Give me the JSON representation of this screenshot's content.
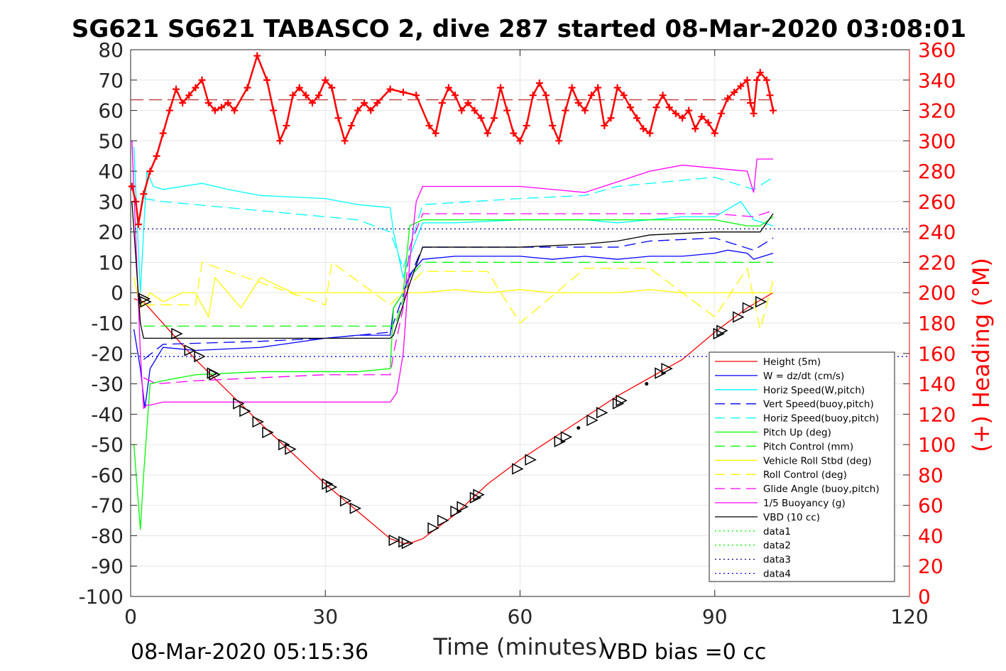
{
  "chart_data": {
    "type": "line",
    "title": "SG621 SG621 TABASCO 2, dive 287 started 08-Mar-2020 03:08:01",
    "xlabel": "Time (minutes)",
    "ylabel": "",
    "y2label": "(+) Heading (°M)",
    "xlim": [
      0,
      120
    ],
    "ylim": [
      -100,
      80
    ],
    "y2lim": [
      0,
      360
    ],
    "xticks": [
      0,
      30,
      60,
      90,
      120
    ],
    "yticks": [
      -100,
      -90,
      -80,
      -70,
      -60,
      -50,
      -40,
      -30,
      -20,
      -10,
      0,
      10,
      20,
      30,
      40,
      50,
      60,
      70,
      80
    ],
    "y2ticks": [
      0,
      20,
      40,
      60,
      80,
      100,
      120,
      140,
      160,
      180,
      200,
      220,
      240,
      260,
      280,
      300,
      320,
      340,
      360
    ],
    "grid": true,
    "legend_position": "bottom-right inside",
    "footer_left": "08-Mar-2020 05:15:36",
    "footer_right": "VBD bias =0 cc",
    "colors": {
      "red": "#ff0000",
      "blue": "#0000ff",
      "cyan": "#00ffff",
      "green": "#00ff00",
      "yellow": "#ffff00",
      "magenta": "#ff00ff",
      "black": "#000000",
      "navy": "#000080"
    },
    "series": [
      {
        "name": "Height (5m)",
        "color": "#ff0000",
        "dash": "solid",
        "x": [
          0.5,
          2,
          10,
          20,
          30,
          35,
          40,
          42,
          43,
          45,
          50,
          55,
          60,
          65,
          70,
          75,
          80,
          85,
          90,
          95,
          99
        ],
        "y": [
          -2,
          -3,
          -22,
          -43,
          -63,
          -72,
          -81,
          -82.5,
          -82.5,
          -81,
          -73,
          -63,
          -55,
          -48,
          -41,
          -34,
          -28,
          -22,
          -13,
          -5,
          0
        ]
      },
      {
        "name": "W = dz/dt (cm/s)",
        "color": "#0000ff",
        "dash": "solid",
        "x": [
          0.5,
          1.5,
          2.2,
          3,
          5,
          10,
          20,
          30,
          35,
          40,
          40.5,
          42,
          43,
          45,
          50,
          60,
          65,
          70,
          75,
          80,
          85,
          90,
          92,
          95,
          96,
          99
        ],
        "y": [
          -12,
          -25,
          -38,
          -25,
          -18,
          -19,
          -18,
          -15,
          -14,
          -14,
          -5,
          0,
          6,
          11,
          12,
          12,
          11,
          12,
          11,
          12,
          12,
          13,
          14,
          13,
          11,
          13
        ]
      },
      {
        "name": "Horiz Speed(W,pitch)",
        "color": "#00ffff",
        "dash": "solid",
        "x": [
          0.5,
          1.5,
          2.5,
          3.5,
          5,
          8,
          11,
          15,
          20,
          30,
          35,
          40,
          40.5,
          42,
          43,
          45,
          50,
          60,
          70,
          75,
          80,
          85,
          90,
          94,
          96,
          99
        ],
        "y": [
          48,
          0,
          40,
          35,
          34,
          35,
          36,
          34,
          32,
          31,
          29,
          28,
          20,
          5,
          12,
          23,
          23,
          24,
          24,
          23,
          24,
          25,
          25,
          30,
          24,
          22
        ]
      },
      {
        "name": "Vert Speed(buoy,pitch)",
        "color": "#0000ff",
        "dash": "dashed",
        "x": [
          2,
          5,
          20,
          30,
          40,
          41,
          43,
          45,
          60,
          75,
          80,
          90,
          96,
          99
        ],
        "y": [
          -22,
          -17,
          -16,
          -15,
          -13,
          -7,
          5,
          15,
          15,
          15,
          17,
          18,
          14,
          18
        ]
      },
      {
        "name": "Horiz Speed(buoy,pitch)",
        "color": "#00ffff",
        "dash": "dashed",
        "x": [
          2,
          5,
          15,
          25,
          35,
          40,
          42,
          43,
          45,
          60,
          70,
          75,
          80,
          90,
          96,
          99
        ],
        "y": [
          31,
          30,
          28,
          26,
          24,
          20,
          8,
          15,
          29,
          31,
          32,
          35,
          36,
          38,
          34,
          38
        ]
      },
      {
        "name": "Pitch Up (deg)",
        "color": "#00ff00",
        "dash": "solid",
        "x": [
          0.5,
          1.5,
          2,
          3,
          5,
          10,
          20,
          30,
          35,
          40,
          40.5,
          42,
          43,
          45,
          60,
          70,
          80,
          90,
          95,
          97,
          99
        ],
        "y": [
          -50,
          -78,
          -60,
          -30,
          -29,
          -27,
          -26,
          -26,
          -26,
          -25,
          -5,
          0,
          22,
          24,
          24,
          24,
          24,
          24,
          22,
          22,
          25
        ]
      },
      {
        "name": "Pitch Control (mm)",
        "color": "#00ff00",
        "dash": "dashed",
        "x": [
          2,
          40.5,
          41,
          43,
          45,
          99
        ],
        "y": [
          -11,
          -11,
          -9,
          5,
          10,
          10
        ]
      },
      {
        "name": "Vehicle Roll Stbd (deg)",
        "color": "#ffff00",
        "dash": "solid",
        "x": [
          0.5,
          1.5,
          3,
          5,
          8,
          10,
          12,
          13,
          15,
          17,
          20,
          25,
          30,
          35,
          40,
          45,
          50,
          55,
          60,
          65,
          70,
          75,
          80,
          85,
          90,
          95,
          97,
          99
        ],
        "y": [
          5,
          -5,
          0,
          -3,
          0,
          0,
          -8,
          5,
          0,
          -5,
          5,
          0,
          0,
          0,
          0,
          0,
          1,
          0,
          1,
          0,
          0,
          0,
          1,
          0,
          0,
          0,
          0,
          0
        ]
      },
      {
        "name": "Roll Control (deg)",
        "color": "#ffff00",
        "dash": "dashed",
        "x": [
          2,
          10,
          11,
          30,
          31,
          40,
          45,
          55,
          60,
          70,
          80,
          90,
          95,
          97,
          99
        ],
        "y": [
          -4,
          -4,
          10,
          -4,
          10,
          -4,
          7,
          7,
          -10,
          8,
          8,
          -8,
          8,
          -12,
          4
        ]
      },
      {
        "name": "Glide Angle (buoy,pitch)",
        "color": "#ff00ff",
        "dash": "dashed",
        "x": [
          2,
          4,
          10,
          20,
          30,
          40,
          40.5,
          42,
          43,
          45,
          60,
          80,
          90,
          96,
          99
        ],
        "y": [
          -28,
          -30,
          -29,
          -28,
          -27,
          -27,
          -20,
          -5,
          15,
          26,
          26,
          26,
          26,
          25,
          27
        ]
      },
      {
        "name": "1/5 Buoyancy (g)",
        "color": "#ff00ff",
        "dash": "solid",
        "x": [
          0.2,
          1.5,
          2,
          2.5,
          3,
          5,
          40,
          41,
          42,
          43,
          44,
          45,
          60,
          70,
          80,
          85,
          90,
          95,
          96,
          96.5,
          99
        ],
        "y": [
          50,
          -20,
          -38,
          -37,
          -37,
          -36,
          -36,
          -33,
          -20,
          10,
          30,
          35,
          35,
          33,
          40,
          42,
          41,
          40,
          33,
          44,
          44
        ]
      },
      {
        "name": "VBD (10 cc)",
        "color": "#000000",
        "dash": "solid",
        "x": [
          0.2,
          1.5,
          2,
          40,
          40.5,
          43,
          45,
          60,
          70,
          75,
          80,
          90,
          97,
          99
        ],
        "y": [
          30,
          -10,
          -15,
          -15,
          -14,
          3,
          15,
          15,
          16,
          17,
          19,
          20,
          20,
          26
        ]
      },
      {
        "name": "data1",
        "color": "#00ff00",
        "dash": "dotted",
        "x": [],
        "y": []
      },
      {
        "name": "data2",
        "color": "#00ff00",
        "dash": "dotted",
        "x": [],
        "y": []
      },
      {
        "name": "data3",
        "color": "#000080",
        "dash": "dotted",
        "x": [
          0,
          120
        ],
        "y": [
          21,
          21
        ]
      },
      {
        "name": "data4",
        "color": "#0000ff",
        "dash": "dotted",
        "x": [
          0,
          120
        ],
        "y": [
          -21,
          -21
        ]
      }
    ],
    "heading": {
      "axis": "right",
      "color": "#ff0000",
      "marker": "+",
      "x": [
        0.2,
        0.8,
        1.2,
        2,
        3,
        4,
        5,
        6,
        7,
        8,
        9,
        10,
        11,
        12,
        13,
        14,
        15,
        16,
        18,
        19.5,
        21,
        22,
        23,
        24,
        25,
        26,
        27,
        28,
        29,
        30,
        31,
        32,
        33,
        34,
        35,
        36,
        37,
        38,
        40,
        42,
        44,
        46,
        47,
        48,
        49,
        50,
        51,
        52,
        53,
        54,
        55,
        56,
        57,
        58,
        59,
        60,
        61,
        62,
        63,
        64,
        65,
        66,
        67,
        68,
        69,
        70,
        71,
        72,
        73,
        74,
        75,
        76,
        77,
        78,
        79,
        80,
        81,
        82,
        83,
        84,
        85,
        86,
        87,
        88,
        89,
        90,
        91,
        92,
        93,
        94,
        95,
        95.5,
        96,
        96.5,
        97,
        98,
        98.5,
        99
      ],
      "y": [
        270,
        260,
        245,
        265,
        280,
        290,
        305,
        320,
        334,
        325,
        330,
        335,
        340,
        325,
        320,
        322,
        325,
        320,
        335,
        356,
        340,
        320,
        300,
        310,
        330,
        335,
        330,
        325,
        330,
        340,
        335,
        315,
        300,
        310,
        320,
        325,
        320,
        325,
        334,
        332,
        330,
        310,
        305,
        325,
        335,
        330,
        320,
        325,
        320,
        315,
        305,
        315,
        335,
        320,
        305,
        300,
        310,
        330,
        338,
        330,
        310,
        300,
        320,
        335,
        325,
        320,
        330,
        335,
        310,
        315,
        335,
        330,
        322,
        315,
        308,
        305,
        322,
        330,
        322,
        318,
        315,
        320,
        308,
        316,
        312,
        305,
        318,
        328,
        332,
        336,
        340,
        325,
        318,
        340,
        345,
        340,
        330,
        320
      ],
      "reference_line": 327
    },
    "triangle_markers": [
      [
        2,
        -2
      ],
      [
        2.2,
        -3
      ],
      [
        7,
        -13.5
      ],
      [
        9,
        -19
      ],
      [
        10.5,
        -21
      ],
      [
        12.5,
        -26.5
      ],
      [
        12.8,
        -27
      ],
      [
        16.5,
        -36.5
      ],
      [
        17.5,
        -39
      ],
      [
        19.5,
        -42.5
      ],
      [
        21,
        -46
      ],
      [
        23.5,
        -50
      ],
      [
        24.5,
        -51.5
      ],
      [
        30.2,
        -63
      ],
      [
        30.8,
        -64
      ],
      [
        33,
        -68.5
      ],
      [
        34.5,
        -71
      ],
      [
        40.5,
        -81.5
      ],
      [
        42,
        -82
      ],
      [
        42.5,
        -82.5
      ],
      [
        46.5,
        -77.5
      ],
      [
        48,
        -75
      ],
      [
        50,
        -72
      ],
      [
        51,
        -70.5
      ],
      [
        53,
        -67.5
      ],
      [
        53.5,
        -66.5
      ],
      [
        59.5,
        -58
      ],
      [
        61.5,
        -55
      ],
      [
        66,
        -49
      ],
      [
        67,
        -47.5
      ],
      [
        71,
        -42
      ],
      [
        72.5,
        -39.5
      ],
      [
        75,
        -36.5
      ],
      [
        75.5,
        -35.5
      ],
      [
        81.5,
        -26.5
      ],
      [
        82.5,
        -25
      ],
      [
        90.5,
        -13.5
      ],
      [
        91,
        -12.5
      ],
      [
        93.5,
        -8
      ],
      [
        95,
        -5
      ],
      [
        97,
        -3
      ]
    ],
    "dot_markers": [
      [
        69,
        -44.5
      ],
      [
        79.5,
        -30
      ]
    ]
  }
}
